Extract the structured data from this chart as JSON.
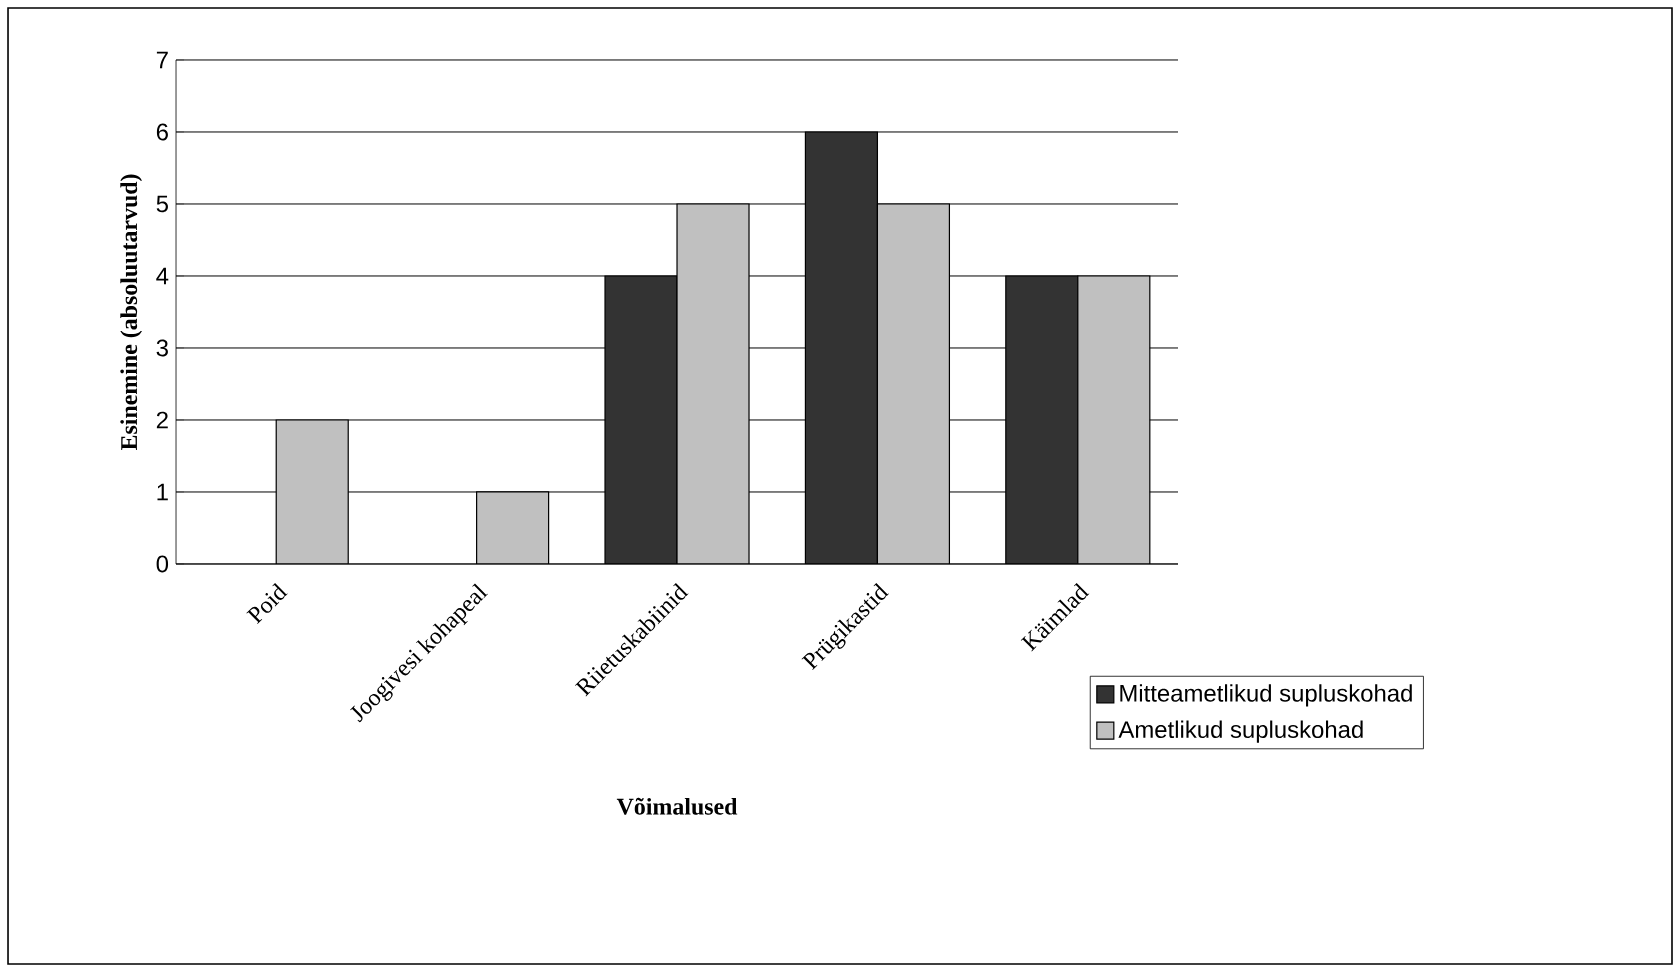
{
  "chart_data": {
    "type": "bar",
    "xlabel": "Võimalused",
    "ylabel": "Esinemine (absoluutarvud)",
    "categories": [
      "Poid",
      "Joogivesi kohapeal",
      "Riietuskabiinid",
      "Prügikastid",
      "Käimlad"
    ],
    "series": [
      {
        "name": "Mitteametlikud supluskohad",
        "color": "#333333",
        "values": [
          null,
          null,
          4,
          6,
          4
        ]
      },
      {
        "name": "Ametlikud supluskohad",
        "color": "#c0c0c0",
        "values": [
          2,
          1,
          5,
          5,
          4
        ]
      }
    ],
    "ylim": [
      0,
      7
    ],
    "yticks": [
      0,
      1,
      2,
      3,
      4,
      5,
      6,
      7
    ],
    "grid": "y",
    "legend": "right"
  }
}
